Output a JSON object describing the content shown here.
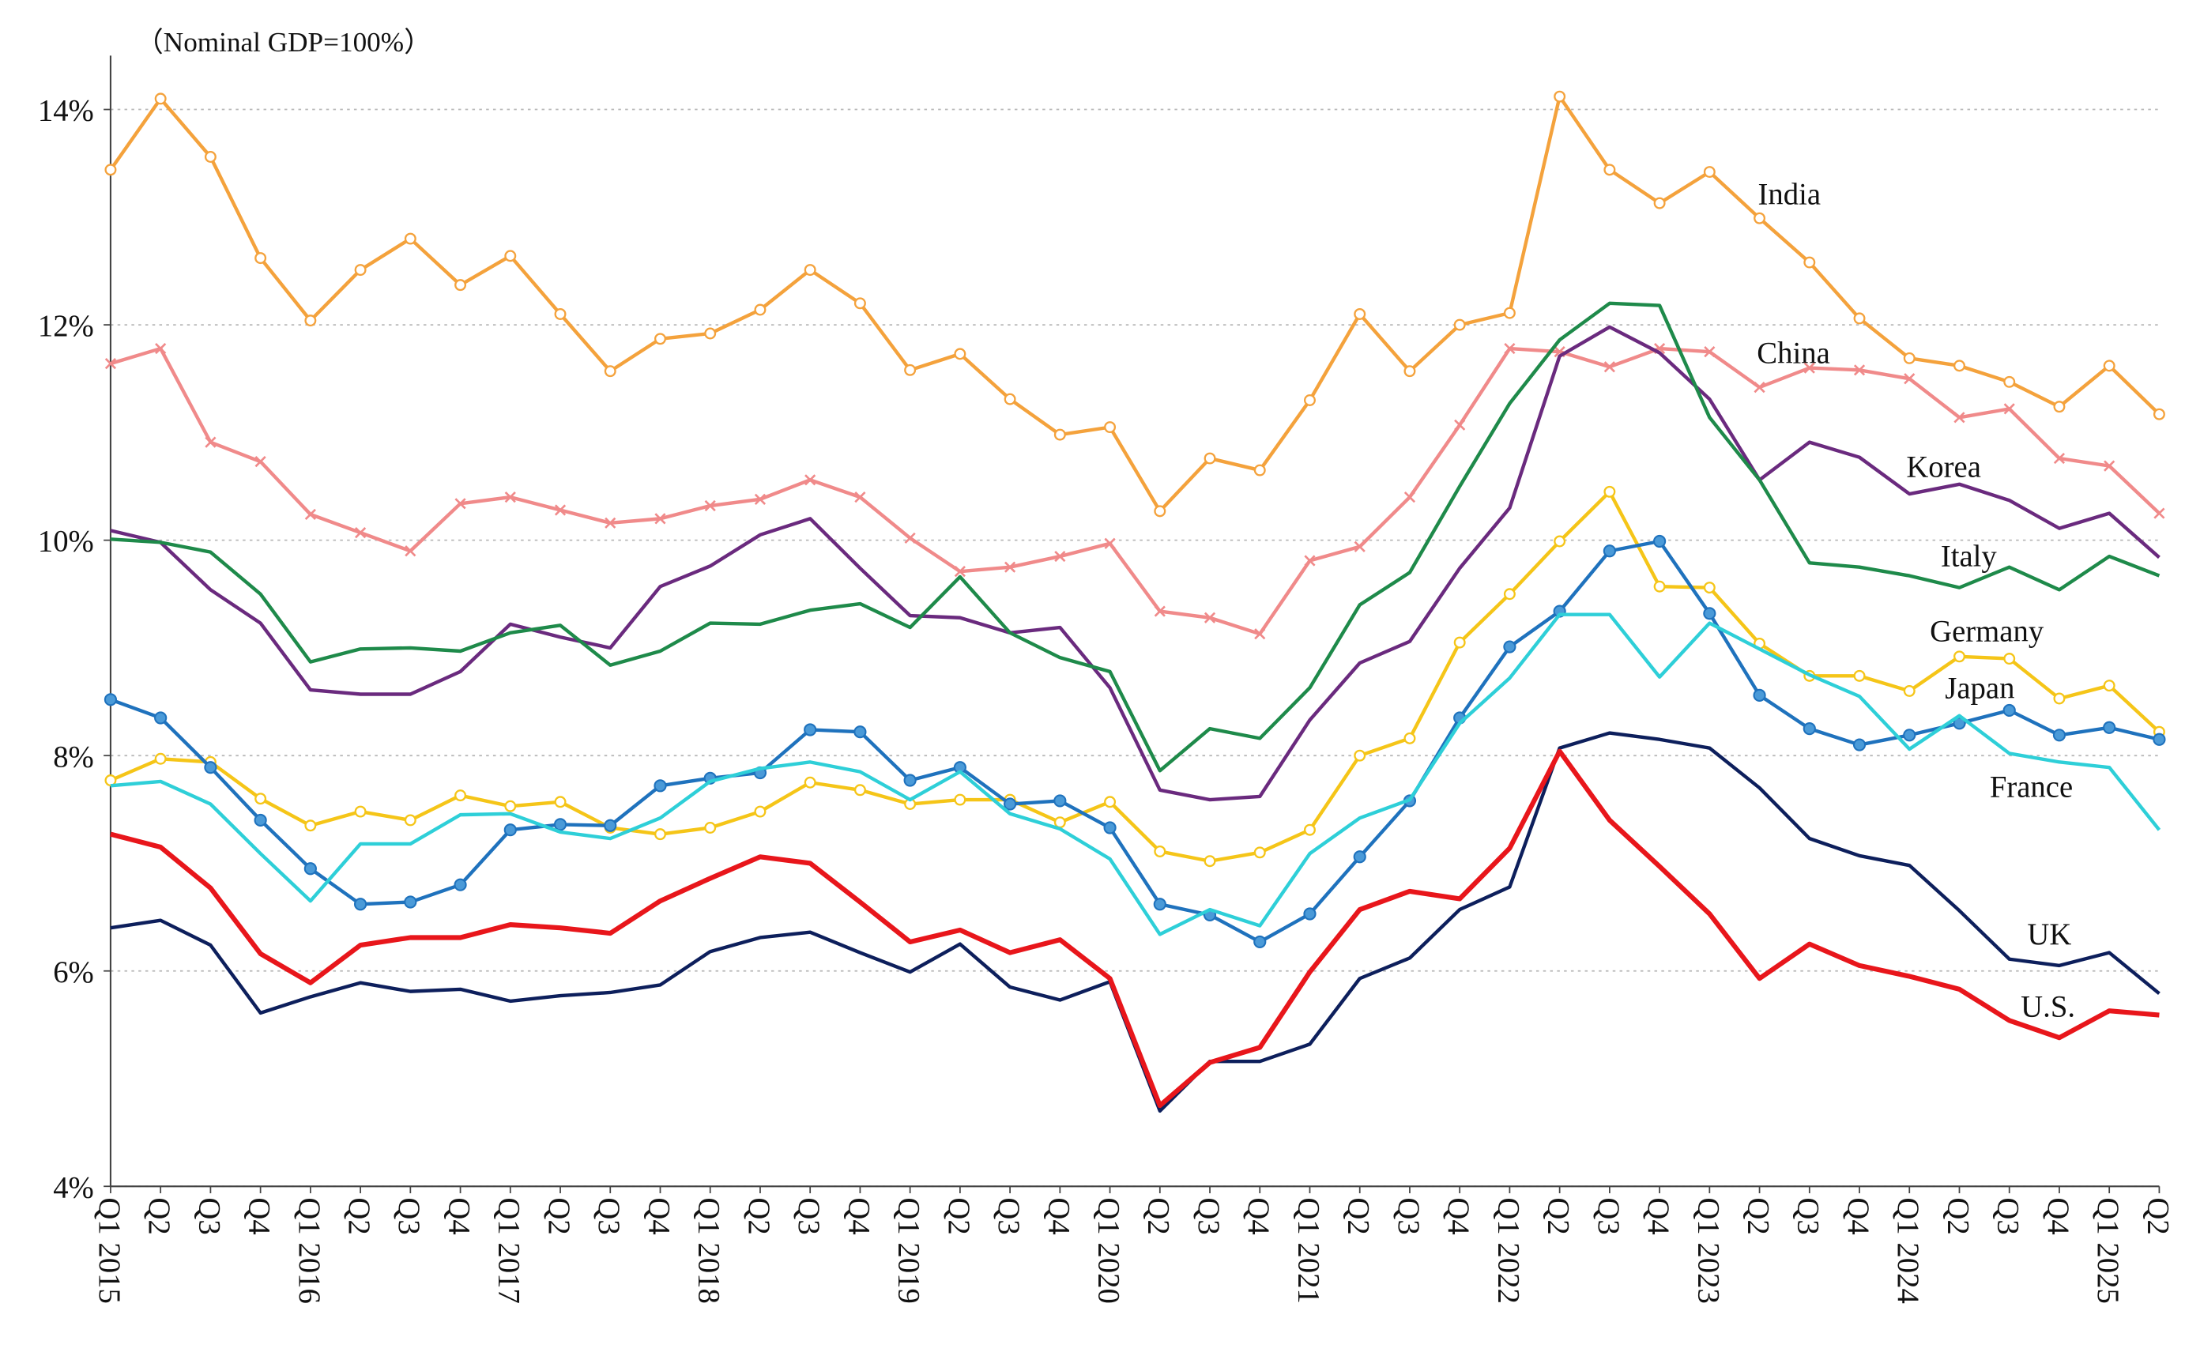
{
  "chart_data": {
    "type": "line",
    "y_label": "（Nominal GDP=100%）",
    "categories": [
      "Q1 2015",
      "Q2",
      "Q3",
      "Q4",
      "Q1 2016",
      "Q2",
      "Q3",
      "Q4",
      "Q1 2017",
      "Q2",
      "Q3",
      "Q4",
      "Q1 2018",
      "Q2",
      "Q3",
      "Q4",
      "Q1 2019",
      "Q2",
      "Q3",
      "Q4",
      "Q1 2020",
      "Q2",
      "Q3",
      "Q4",
      "Q1 2021",
      "Q2",
      "Q3",
      "Q4",
      "Q1 2022",
      "Q2",
      "Q3",
      "Q4",
      "Q1 2023",
      "Q2",
      "Q3",
      "Q4",
      "Q1 2024",
      "Q2",
      "Q3",
      "Q4",
      "Q1 2025",
      "Q2"
    ],
    "ylim": [
      4,
      14.5
    ],
    "yticks": [
      {
        "value": 4,
        "label": "4%"
      },
      {
        "value": 6,
        "label": "6%"
      },
      {
        "value": 8,
        "label": "8%"
      },
      {
        "value": 10,
        "label": "10%"
      },
      {
        "value": 12,
        "label": "12%"
      },
      {
        "value": 14,
        "label": "14%"
      }
    ],
    "grid": true,
    "series": [
      {
        "name": "India",
        "color": "#f4a23c",
        "marker": "circle-open",
        "values": [
          13.44,
          14.1,
          13.56,
          12.62,
          12.04,
          12.51,
          12.8,
          12.37,
          12.64,
          12.1,
          11.57,
          11.87,
          11.92,
          12.14,
          12.51,
          12.2,
          11.58,
          11.73,
          11.31,
          10.98,
          11.05,
          10.27,
          10.76,
          10.65,
          11.3,
          12.1,
          11.57,
          12.0,
          12.11,
          14.12,
          13.44,
          13.13,
          13.42,
          12.99,
          12.58,
          12.06,
          11.69,
          11.62,
          11.47,
          11.24,
          11.62,
          11.17
        ]
      },
      {
        "name": "China",
        "color": "#f08a8a",
        "marker": "x",
        "values": [
          11.64,
          11.78,
          10.91,
          10.73,
          10.24,
          10.07,
          9.9,
          10.34,
          10.4,
          10.28,
          10.16,
          10.2,
          10.32,
          10.38,
          10.56,
          10.4,
          10.02,
          9.71,
          9.75,
          9.85,
          9.97,
          9.34,
          9.28,
          9.13,
          9.81,
          9.94,
          10.4,
          11.07,
          11.78,
          11.75,
          11.61,
          11.78,
          11.75,
          11.42,
          11.6,
          11.58,
          11.5,
          11.14,
          11.22,
          10.76,
          10.69,
          10.25
        ]
      },
      {
        "name": "Korea",
        "color": "#6a2a7e",
        "values": [
          10.09,
          9.98,
          9.54,
          9.23,
          8.61,
          8.57,
          8.57,
          8.78,
          9.22,
          9.1,
          9.0,
          9.57,
          9.76,
          10.05,
          10.2,
          9.74,
          9.3,
          9.28,
          9.14,
          9.19,
          8.63,
          7.68,
          7.59,
          7.62,
          8.33,
          8.86,
          9.06,
          9.74,
          10.3,
          11.71,
          11.98,
          11.74,
          11.31,
          10.56,
          10.91,
          10.77,
          10.43,
          10.52,
          10.37,
          10.11,
          10.25,
          9.84
        ]
      },
      {
        "name": "Italy",
        "color": "#1e8a4a",
        "values": [
          10.01,
          9.98,
          9.89,
          9.5,
          8.87,
          8.99,
          9.0,
          8.97,
          9.14,
          9.21,
          8.84,
          8.97,
          9.23,
          9.22,
          9.35,
          9.41,
          9.19,
          9.66,
          9.14,
          8.91,
          8.78,
          7.86,
          8.25,
          8.16,
          8.63,
          9.4,
          9.7,
          10.5,
          11.27,
          11.86,
          12.2,
          12.18,
          11.14,
          10.56,
          9.79,
          9.75,
          9.67,
          9.56,
          9.75,
          9.54,
          9.85,
          9.67
        ]
      },
      {
        "name": "Germany",
        "color": "#f5c518",
        "marker": "circle-open",
        "values": [
          7.77,
          7.97,
          7.94,
          7.6,
          7.35,
          7.48,
          7.4,
          7.63,
          7.53,
          7.57,
          7.33,
          7.27,
          7.33,
          7.48,
          7.75,
          7.68,
          7.55,
          7.59,
          7.59,
          7.38,
          7.57,
          7.11,
          7.02,
          7.1,
          7.31,
          8.0,
          8.16,
          9.05,
          9.5,
          9.99,
          10.45,
          9.57,
          9.56,
          9.04,
          8.74,
          8.74,
          8.6,
          8.92,
          8.9,
          8.53,
          8.65,
          8.22
        ]
      },
      {
        "name": "Japan",
        "color": "#1f72bd",
        "marker": "circle",
        "values": [
          8.52,
          8.35,
          7.89,
          7.4,
          6.95,
          6.62,
          6.64,
          6.8,
          7.31,
          7.36,
          7.35,
          7.72,
          7.79,
          7.84,
          8.24,
          8.22,
          7.77,
          7.89,
          7.55,
          7.58,
          7.33,
          6.62,
          6.52,
          6.27,
          6.53,
          7.06,
          7.58,
          8.35,
          9.01,
          9.34,
          9.9,
          9.99,
          9.32,
          8.56,
          8.25,
          8.1,
          8.19,
          8.3,
          8.42,
          8.19,
          8.26,
          8.15
        ]
      },
      {
        "name": "France",
        "color": "#2ecfd8",
        "values": [
          7.72,
          7.76,
          7.55,
          7.09,
          6.65,
          7.18,
          7.18,
          7.45,
          7.46,
          7.29,
          7.23,
          7.42,
          7.76,
          7.88,
          7.94,
          7.85,
          7.59,
          7.85,
          7.46,
          7.32,
          7.04,
          6.34,
          6.57,
          6.42,
          7.09,
          7.42,
          7.59,
          8.3,
          8.72,
          9.31,
          9.31,
          8.73,
          9.23,
          8.99,
          8.75,
          8.55,
          8.06,
          8.37,
          8.02,
          7.94,
          7.89,
          7.31
        ]
      },
      {
        "name": "UK",
        "color": "#0d1f5c",
        "values": [
          6.4,
          6.47,
          6.24,
          5.61,
          5.76,
          5.89,
          5.81,
          5.83,
          5.72,
          5.77,
          5.8,
          5.87,
          6.18,
          6.31,
          6.36,
          6.17,
          5.99,
          6.25,
          5.85,
          5.73,
          5.9,
          4.7,
          5.16,
          5.16,
          5.32,
          5.93,
          6.12,
          6.57,
          6.78,
          8.07,
          8.21,
          8.15,
          8.07,
          7.7,
          7.23,
          7.07,
          6.98,
          6.56,
          6.11,
          6.05,
          6.17,
          5.79
        ]
      },
      {
        "name": "U.S.",
        "color": "#e8161b",
        "values": [
          7.27,
          7.15,
          6.77,
          6.16,
          5.89,
          6.24,
          6.31,
          6.31,
          6.43,
          6.4,
          6.35,
          6.65,
          6.86,
          7.06,
          7.0,
          6.64,
          6.27,
          6.38,
          6.17,
          6.29,
          5.93,
          4.75,
          5.15,
          5.29,
          5.99,
          6.57,
          6.74,
          6.67,
          7.14,
          8.04,
          7.4,
          6.97,
          6.53,
          5.93,
          6.25,
          6.05,
          5.95,
          5.83,
          5.54,
          5.38,
          5.63,
          5.59
        ]
      }
    ]
  }
}
